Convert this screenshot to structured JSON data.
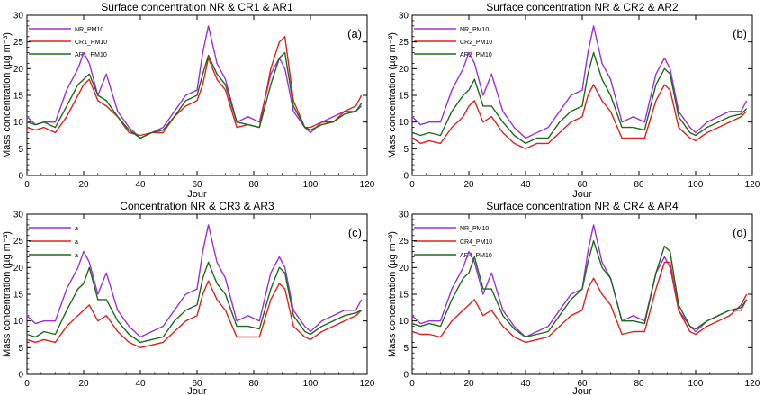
{
  "colors": {
    "NR": "#9b30d9",
    "CR": "#e0201c",
    "AR": "#1a6b1a",
    "axis": "#000000"
  },
  "chart_data": [
    {
      "type": "line",
      "panel_label": "(a)",
      "title": "Surface concentration NR & CR1 & AR1",
      "xlabel": "Jour",
      "ylabel": "Mass concentration (µg m⁻³)",
      "xlim": [
        0,
        120
      ],
      "ylim": [
        0,
        30
      ],
      "xticks": [
        0,
        20,
        40,
        60,
        80,
        100,
        120
      ],
      "yticks": [
        0,
        5,
        10,
        15,
        20,
        25,
        30
      ],
      "legend": [
        "NR_PM10",
        "CR1_PM10",
        "AR1_PM10"
      ],
      "series": [
        {
          "name": "NR_PM10",
          "x": [
            0,
            3,
            6,
            10,
            14,
            18,
            20,
            22,
            25,
            28,
            32,
            36,
            40,
            44,
            48,
            52,
            56,
            60,
            62,
            64,
            67,
            70,
            74,
            78,
            82,
            86,
            89,
            91,
            94,
            98,
            100,
            104,
            108,
            112,
            116,
            118
          ],
          "y": [
            11,
            9.5,
            10,
            10,
            16,
            20,
            23,
            21,
            15,
            19,
            12,
            9,
            7,
            8,
            9,
            12,
            15,
            16,
            23,
            28,
            21,
            18,
            10,
            11,
            10,
            19,
            22,
            20,
            12,
            9,
            8,
            10,
            11,
            12,
            12,
            13
          ]
        },
        {
          "name": "CR1_PM10",
          "x": [
            0,
            3,
            6,
            10,
            14,
            18,
            20,
            22,
            25,
            28,
            32,
            36,
            40,
            44,
            48,
            52,
            56,
            60,
            62,
            64,
            67,
            70,
            74,
            78,
            82,
            86,
            89,
            91,
            94,
            98,
            100,
            104,
            108,
            112,
            116,
            118
          ],
          "y": [
            9,
            8.5,
            9,
            8,
            11,
            15,
            17,
            18,
            14,
            13,
            11,
            8,
            7.5,
            8,
            8,
            11,
            13,
            14,
            17,
            22,
            18,
            16,
            9,
            9.5,
            9,
            20,
            25,
            26,
            14,
            9,
            9,
            10,
            10,
            12,
            13,
            15
          ]
        },
        {
          "name": "AR1_PM10",
          "x": [
            0,
            3,
            6,
            10,
            14,
            18,
            20,
            22,
            25,
            28,
            32,
            36,
            40,
            44,
            48,
            52,
            56,
            60,
            62,
            64,
            67,
            70,
            74,
            78,
            82,
            86,
            89,
            91,
            94,
            98,
            100,
            104,
            108,
            112,
            116,
            118
          ],
          "y": [
            10,
            9.5,
            10,
            9,
            13,
            17,
            18,
            19,
            15,
            14,
            11,
            8.5,
            7,
            8,
            8.5,
            11,
            14,
            15,
            19,
            22.5,
            19,
            17,
            10,
            9.5,
            9,
            17,
            22,
            23,
            13,
            9,
            8.5,
            9.5,
            10,
            11.5,
            12,
            13.5
          ]
        }
      ]
    },
    {
      "type": "line",
      "panel_label": "(b)",
      "title": "Surface concentration NR & CR2 & AR2",
      "xlabel": "Jour",
      "ylabel": "Mass concentration (µg m⁻³)",
      "xlim": [
        0,
        120
      ],
      "ylim": [
        0,
        30
      ],
      "xticks": [
        0,
        20,
        40,
        60,
        80,
        100,
        120
      ],
      "yticks": [
        0,
        5,
        10,
        15,
        20,
        25,
        30
      ],
      "legend": [
        "NR_PM10",
        "CR2_PM10",
        "AR2_PM10"
      ],
      "series": [
        {
          "name": "NR_PM10",
          "x": [
            0,
            3,
            6,
            10,
            14,
            18,
            20,
            22,
            25,
            28,
            32,
            36,
            40,
            44,
            48,
            52,
            56,
            60,
            62,
            64,
            67,
            70,
            74,
            78,
            82,
            86,
            89,
            91,
            94,
            98,
            100,
            104,
            108,
            112,
            116,
            118
          ],
          "y": [
            11,
            9.5,
            10,
            10,
            16,
            20,
            23,
            21,
            15,
            19,
            12,
            9,
            7,
            8,
            9,
            12,
            15,
            16,
            23,
            28,
            21,
            18,
            10,
            11,
            10,
            19,
            22,
            20,
            12,
            9,
            8,
            10,
            11,
            12,
            12,
            14
          ]
        },
        {
          "name": "CR2_PM10",
          "x": [
            0,
            3,
            6,
            10,
            14,
            18,
            20,
            22,
            25,
            28,
            32,
            36,
            40,
            44,
            48,
            52,
            56,
            60,
            62,
            64,
            67,
            70,
            74,
            78,
            82,
            86,
            89,
            91,
            94,
            98,
            100,
            104,
            108,
            112,
            116,
            118
          ],
          "y": [
            7,
            6,
            6.5,
            6,
            9,
            11,
            13,
            14,
            10,
            11,
            8,
            6,
            5,
            6,
            6,
            8,
            10,
            11,
            15,
            17,
            14,
            12,
            7,
            7,
            7,
            14,
            17,
            16,
            9,
            7,
            6.5,
            8,
            9,
            10,
            11,
            12
          ]
        },
        {
          "name": "AR2_PM10",
          "x": [
            0,
            3,
            6,
            10,
            14,
            18,
            20,
            22,
            25,
            28,
            32,
            36,
            40,
            44,
            48,
            52,
            56,
            60,
            62,
            64,
            67,
            70,
            74,
            78,
            82,
            86,
            89,
            91,
            94,
            98,
            100,
            104,
            108,
            112,
            116,
            118
          ],
          "y": [
            8,
            7.5,
            8,
            7.5,
            12,
            15,
            16,
            18,
            13,
            13,
            10,
            7.5,
            6,
            7,
            7,
            10,
            12,
            13,
            19,
            23,
            18,
            15,
            9,
            9,
            8.5,
            17,
            20,
            19,
            11,
            8,
            7.5,
            9,
            10,
            11,
            11.5,
            12.5
          ]
        }
      ]
    },
    {
      "type": "line",
      "panel_label": "(c)",
      "title": "Concentration NR & CR3 & AR3",
      "xlabel": "Jour",
      "ylabel": "Mass concentration (µg m⁻³)",
      "xlim": [
        0,
        120
      ],
      "ylim": [
        0,
        30
      ],
      "xticks": [
        0,
        20,
        40,
        60,
        80,
        100,
        120
      ],
      "yticks": [
        0,
        5,
        10,
        15,
        20,
        25,
        30
      ],
      "legend": [
        "a",
        "a",
        "a"
      ],
      "series": [
        {
          "name": "a",
          "x": [
            0,
            3,
            6,
            10,
            14,
            18,
            20,
            22,
            25,
            28,
            32,
            36,
            40,
            44,
            48,
            52,
            56,
            60,
            62,
            64,
            67,
            70,
            74,
            78,
            82,
            86,
            89,
            91,
            94,
            98,
            100,
            104,
            108,
            112,
            116,
            118
          ],
          "y": [
            11,
            9.5,
            10,
            10,
            16,
            20,
            23,
            21,
            15,
            19,
            12,
            9,
            7,
            8,
            9,
            12,
            15,
            16,
            23,
            28,
            21,
            18,
            10,
            11,
            10,
            19,
            22,
            20,
            12,
            9,
            8,
            10,
            11,
            12,
            12,
            14
          ]
        },
        {
          "name": "a",
          "x": [
            0,
            3,
            6,
            10,
            14,
            18,
            20,
            22,
            25,
            28,
            32,
            36,
            40,
            44,
            48,
            52,
            56,
            60,
            62,
            64,
            67,
            70,
            74,
            78,
            82,
            86,
            89,
            91,
            94,
            98,
            100,
            104,
            108,
            112,
            116,
            118
          ],
          "y": [
            6.5,
            6,
            6.5,
            6,
            9,
            11,
            12,
            13,
            10,
            11,
            8,
            6,
            5,
            5.5,
            6,
            8,
            10,
            11,
            15,
            17.5,
            14,
            12,
            7,
            7,
            7,
            14,
            17,
            16,
            9,
            7,
            6.5,
            8,
            9,
            10,
            11,
            12
          ]
        },
        {
          "name": "a",
          "x": [
            0,
            3,
            6,
            10,
            14,
            18,
            20,
            22,
            25,
            28,
            32,
            36,
            40,
            44,
            48,
            52,
            56,
            60,
            62,
            64,
            67,
            70,
            74,
            78,
            82,
            86,
            89,
            91,
            94,
            98,
            100,
            104,
            108,
            112,
            116,
            118
          ],
          "y": [
            7.5,
            7,
            8,
            7.5,
            12,
            16,
            17,
            20,
            14,
            14,
            10,
            7.5,
            6,
            6.5,
            7,
            10,
            12,
            13,
            18,
            21,
            17,
            15,
            9,
            9,
            8.5,
            16,
            20,
            19,
            11,
            8,
            7.5,
            9,
            10,
            11,
            11.5,
            12
          ]
        }
      ]
    },
    {
      "type": "line",
      "panel_label": "(d)",
      "title": "Surface concentration NR & CR4 & AR4",
      "xlabel": "Jour",
      "ylabel": "Mass concentration (µg m⁻³)",
      "xlim": [
        0,
        120
      ],
      "ylim": [
        0,
        30
      ],
      "xticks": [
        0,
        20,
        40,
        60,
        80,
        100,
        120
      ],
      "yticks": [
        0,
        5,
        10,
        15,
        20,
        25,
        30
      ],
      "legend": [
        "NR_PM10",
        "CR4_PM10",
        "AR4_PM10"
      ],
      "series": [
        {
          "name": "NR_PM10",
          "x": [
            0,
            3,
            6,
            10,
            14,
            18,
            20,
            22,
            25,
            28,
            32,
            36,
            40,
            44,
            48,
            52,
            56,
            60,
            62,
            64,
            67,
            70,
            74,
            78,
            82,
            86,
            89,
            91,
            94,
            98,
            100,
            104,
            108,
            112,
            116,
            118
          ],
          "y": [
            11,
            9.5,
            10,
            10,
            16,
            20,
            23,
            21,
            15,
            19,
            12,
            9,
            7,
            8,
            9,
            12,
            15,
            16,
            23,
            28,
            21,
            18,
            10,
            11,
            10,
            19,
            22,
            20,
            12,
            9,
            8,
            10,
            11,
            12,
            12,
            14
          ]
        },
        {
          "name": "CR4_PM10",
          "x": [
            0,
            3,
            6,
            10,
            14,
            18,
            20,
            22,
            25,
            28,
            32,
            36,
            40,
            44,
            48,
            52,
            56,
            60,
            62,
            64,
            67,
            70,
            74,
            78,
            82,
            86,
            89,
            91,
            94,
            98,
            100,
            104,
            108,
            112,
            116,
            118
          ],
          "y": [
            8,
            7.5,
            7.5,
            7,
            10,
            12,
            13,
            14,
            11,
            12,
            9,
            7,
            6,
            6.5,
            7,
            9,
            11,
            12,
            16,
            18,
            15,
            13,
            7.5,
            8,
            8,
            16,
            21,
            21,
            12,
            8,
            7.5,
            9,
            10,
            11,
            13,
            15
          ]
        },
        {
          "name": "AR4_PM10",
          "x": [
            0,
            3,
            6,
            10,
            14,
            18,
            20,
            22,
            25,
            28,
            32,
            36,
            40,
            44,
            48,
            52,
            56,
            60,
            62,
            64,
            67,
            70,
            74,
            78,
            82,
            86,
            89,
            91,
            94,
            98,
            100,
            104,
            108,
            112,
            116,
            118
          ],
          "y": [
            9.5,
            9,
            9.5,
            9,
            14,
            18,
            19,
            22,
            16,
            16,
            11,
            8.5,
            7,
            7.5,
            8,
            11,
            14,
            16,
            21,
            25,
            20,
            18,
            10,
            10,
            9.5,
            19,
            24,
            23,
            13,
            9,
            8.5,
            10,
            11,
            12,
            12.5,
            14
          ]
        }
      ]
    }
  ]
}
